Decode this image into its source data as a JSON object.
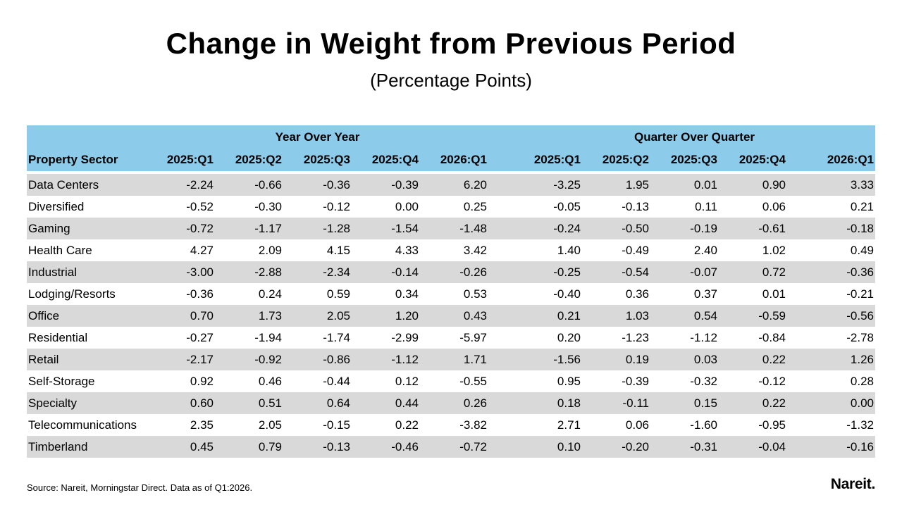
{
  "title": "Change in Weight from Previous Period",
  "subtitle": "(Percentage Points)",
  "source": "Source: Nareit, Morningstar Direct. Data as of Q1:2026.",
  "logo": "Nareit.",
  "colors": {
    "header_background": "#8dcbea",
    "stripe_background": "#d9d9d9"
  },
  "chart_data": {
    "type": "table",
    "groups": [
      "Year Over Year",
      "Quarter Over Quarter"
    ],
    "sector_header": "Property Sector",
    "columns": [
      "2025:Q1",
      "2025:Q2",
      "2025:Q3",
      "2025:Q4",
      "2026:Q1"
    ],
    "rows": [
      {
        "sector": "Data Centers",
        "yoy": [
          "-2.24",
          "-0.66",
          "-0.36",
          "-0.39",
          "6.20"
        ],
        "qoq": [
          "-3.25",
          "1.95",
          "0.01",
          "0.90",
          "3.33"
        ]
      },
      {
        "sector": "Diversified",
        "yoy": [
          "-0.52",
          "-0.30",
          "-0.12",
          "0.00",
          "0.25"
        ],
        "qoq": [
          "-0.05",
          "-0.13",
          "0.11",
          "0.06",
          "0.21"
        ]
      },
      {
        "sector": "Gaming",
        "yoy": [
          "-0.72",
          "-1.17",
          "-1.28",
          "-1.54",
          "-1.48"
        ],
        "qoq": [
          "-0.24",
          "-0.50",
          "-0.19",
          "-0.61",
          "-0.18"
        ]
      },
      {
        "sector": "Health Care",
        "yoy": [
          "4.27",
          "2.09",
          "4.15",
          "4.33",
          "3.42"
        ],
        "qoq": [
          "1.40",
          "-0.49",
          "2.40",
          "1.02",
          "0.49"
        ]
      },
      {
        "sector": "Industrial",
        "yoy": [
          "-3.00",
          "-2.88",
          "-2.34",
          "-0.14",
          "-0.26"
        ],
        "qoq": [
          "-0.25",
          "-0.54",
          "-0.07",
          "0.72",
          "-0.36"
        ]
      },
      {
        "sector": "Lodging/Resorts",
        "yoy": [
          "-0.36",
          "0.24",
          "0.59",
          "0.34",
          "0.53"
        ],
        "qoq": [
          "-0.40",
          "0.36",
          "0.37",
          "0.01",
          "-0.21"
        ]
      },
      {
        "sector": "Office",
        "yoy": [
          "0.70",
          "1.73",
          "2.05",
          "1.20",
          "0.43"
        ],
        "qoq": [
          "0.21",
          "1.03",
          "0.54",
          "-0.59",
          "-0.56"
        ]
      },
      {
        "sector": "Residential",
        "yoy": [
          "-0.27",
          "-1.94",
          "-1.74",
          "-2.99",
          "-5.97"
        ],
        "qoq": [
          "0.20",
          "-1.23",
          "-1.12",
          "-0.84",
          "-2.78"
        ]
      },
      {
        "sector": "Retail",
        "yoy": [
          "-2.17",
          "-0.92",
          "-0.86",
          "-1.12",
          "1.71"
        ],
        "qoq": [
          "-1.56",
          "0.19",
          "0.03",
          "0.22",
          "1.26"
        ]
      },
      {
        "sector": "Self-Storage",
        "yoy": [
          "0.92",
          "0.46",
          "-0.44",
          "0.12",
          "-0.55"
        ],
        "qoq": [
          "0.95",
          "-0.39",
          "-0.32",
          "-0.12",
          "0.28"
        ]
      },
      {
        "sector": "Specialty",
        "yoy": [
          "0.60",
          "0.51",
          "0.64",
          "0.44",
          "0.26"
        ],
        "qoq": [
          "0.18",
          "-0.11",
          "0.15",
          "0.22",
          "0.00"
        ]
      },
      {
        "sector": "Telecommunications",
        "yoy": [
          "2.35",
          "2.05",
          "-0.15",
          "0.22",
          "-3.82"
        ],
        "qoq": [
          "2.71",
          "0.06",
          "-1.60",
          "-0.95",
          "-1.32"
        ]
      },
      {
        "sector": "Timberland",
        "yoy": [
          "0.45",
          "0.79",
          "-0.13",
          "-0.46",
          "-0.72"
        ],
        "qoq": [
          "0.10",
          "-0.20",
          "-0.31",
          "-0.04",
          "-0.16"
        ]
      }
    ]
  }
}
